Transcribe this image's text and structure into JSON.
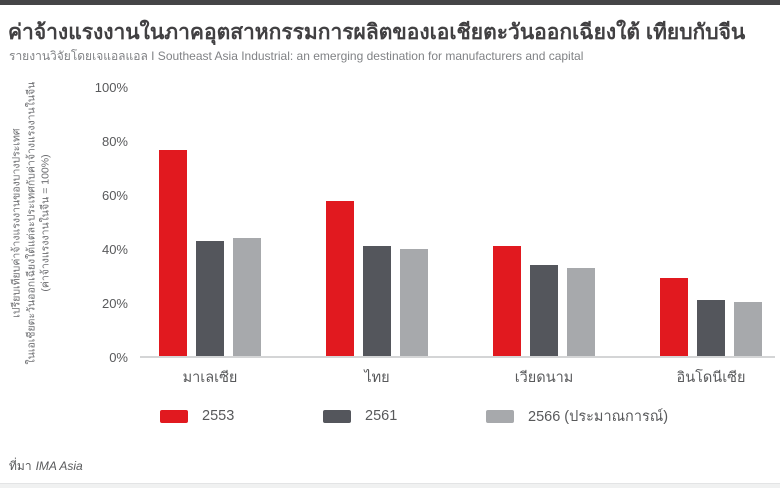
{
  "page": {
    "title": "ค่าจ้างแรงงานในภาคอุตสาหกรรมการผลิตของเอเชียตะวันออกเฉียงใต้ เทียบกับจีน",
    "subtitle": "รายงานวิจัยโดยเจแอลแอล  I  Southeast Asia Industrial: an emerging destination for manufacturers and capital",
    "source_prefix": "ที่มา",
    "source_name": "IMA Asia"
  },
  "chart_data": {
    "type": "bar",
    "title": "ค่าจ้างแรงงานในภาคอุตสาหกรรมการผลิตของเอเชียตะวันออกเฉียงใต้ เทียบกับจีน",
    "ylabel_lines": [
      "เปรียบเทียบค่าจ้างแรงงานของบางประเทศ",
      "ในเอเชียตะวันออกเฉียงใต้แต่ละประเทศกับค่าจ้างแรงงานในจีน",
      "(ค่าจ้างแรงงานในจีน = 100%)"
    ],
    "xlabel": "",
    "categories": [
      "มาเลเซีย",
      "ไทย",
      "เวียดนาม",
      "อินโดนีเซีย"
    ],
    "series": [
      {
        "name": "2553",
        "color": "#e1191f",
        "values": [
          77,
          58,
          41,
          29
        ]
      },
      {
        "name": "2561",
        "color": "#54565c",
        "values": [
          43,
          41,
          34,
          21
        ]
      },
      {
        "name": "2566 (ประมาณการณ์)",
        "color": "#a7a9ac",
        "values": [
          44,
          40,
          33,
          20
        ]
      }
    ],
    "ylim": [
      0,
      100
    ],
    "y_ticks": [
      "100%",
      "80%",
      "60%",
      "40%",
      "20%",
      "0%"
    ],
    "grid": false,
    "legend_position": "bottom",
    "unit": "%"
  },
  "colors": {
    "accent_red": "#e1191f",
    "dark_gray": "#54565c",
    "light_gray": "#a7a9ac",
    "axis_line": "#d4d5d6",
    "title_text": "#414042",
    "subtitle_text": "#808285",
    "tick_text": "#58595b"
  }
}
